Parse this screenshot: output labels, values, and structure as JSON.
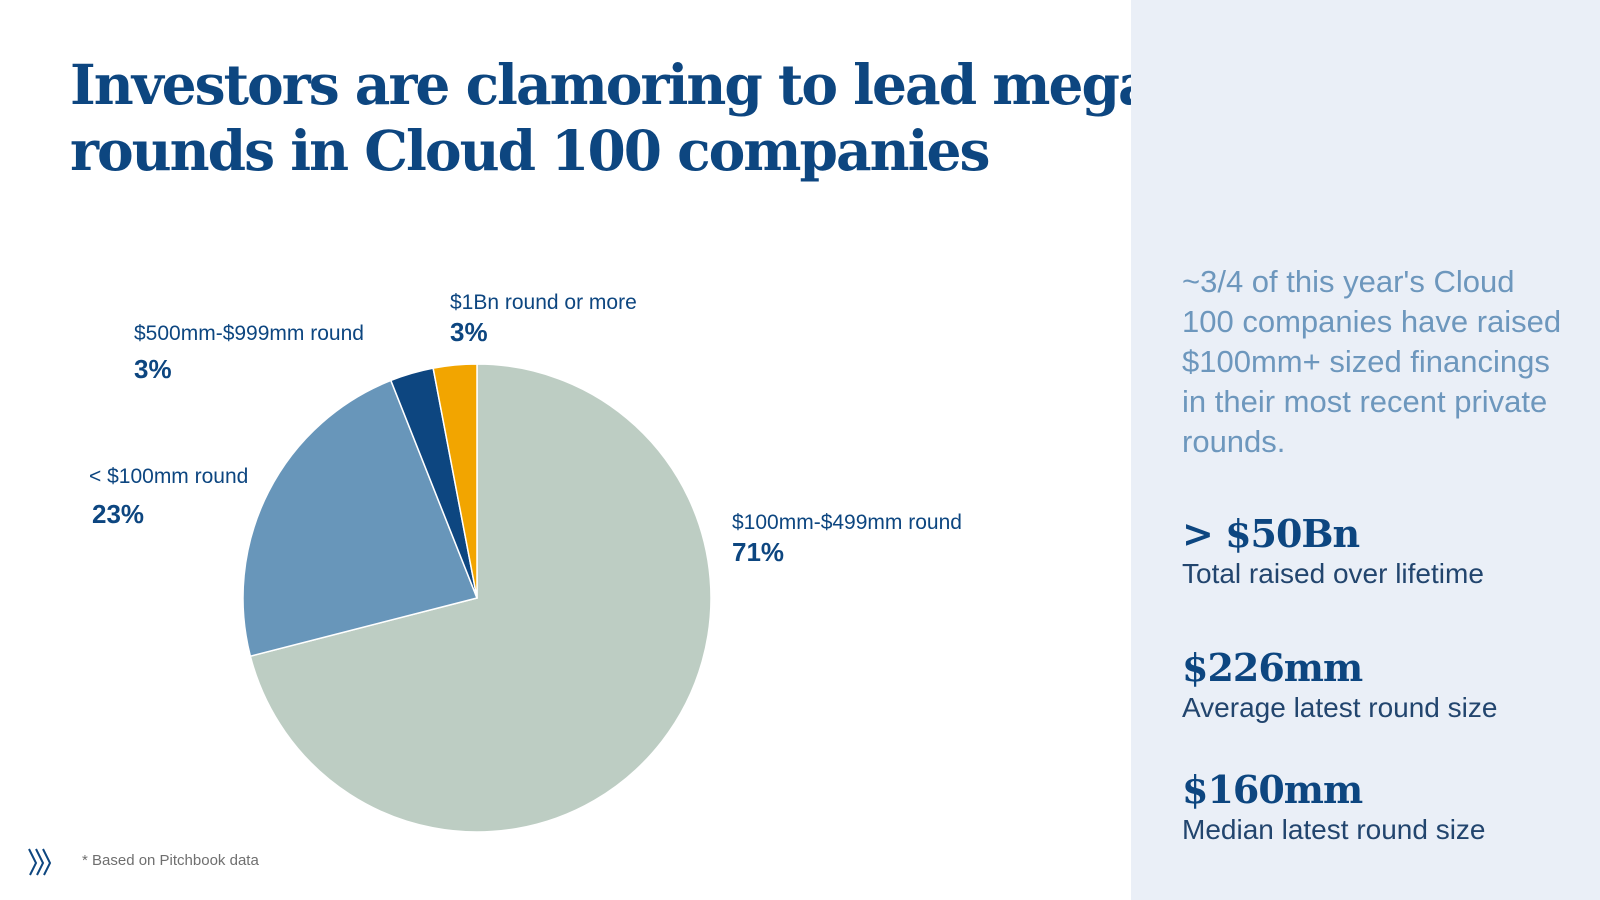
{
  "title": {
    "line1": "Investors are clamoring to lead mega",
    "line2": "rounds in Cloud 100 companies"
  },
  "chart_data": {
    "type": "pie",
    "title": "Investors are clamoring to lead mega rounds in Cloud 100 companies",
    "start": "12 o'clock, clockwise",
    "slices": [
      {
        "key": "s100",
        "label": "$100mm-$499mm round",
        "value": 71,
        "display": "71%",
        "color": "#bdcdc3"
      },
      {
        "key": "lt100",
        "label": "< $100mm round",
        "value": 23,
        "display": "23%",
        "color": "#6896ba"
      },
      {
        "key": "s500",
        "label": "$500mm-$999mm round",
        "value": 3,
        "display": "3%",
        "color": "#0d4680"
      },
      {
        "key": "s1bn",
        "label": "$1Bn round or more",
        "value": 3,
        "display": "3%",
        "color": "#f2a500"
      }
    ]
  },
  "footnote": "* Based on Pitchbook data",
  "logo_icon": "slanted-lines-logo-icon",
  "sidebar": {
    "summary": "~3/4 of this year's Cloud 100 companies have raised $100mm+ sized financings in their most recent private rounds.",
    "stats": [
      {
        "value": "> $50Bn",
        "label": "Total raised over lifetime"
      },
      {
        "value": "$226mm",
        "label": "Average latest round size"
      },
      {
        "value": "$160mm",
        "label": "Median latest round size"
      }
    ]
  },
  "colors": {
    "title": "#0d4680",
    "sidebar_bg": "#eaeff7",
    "summary_text": "#6d97bd"
  }
}
